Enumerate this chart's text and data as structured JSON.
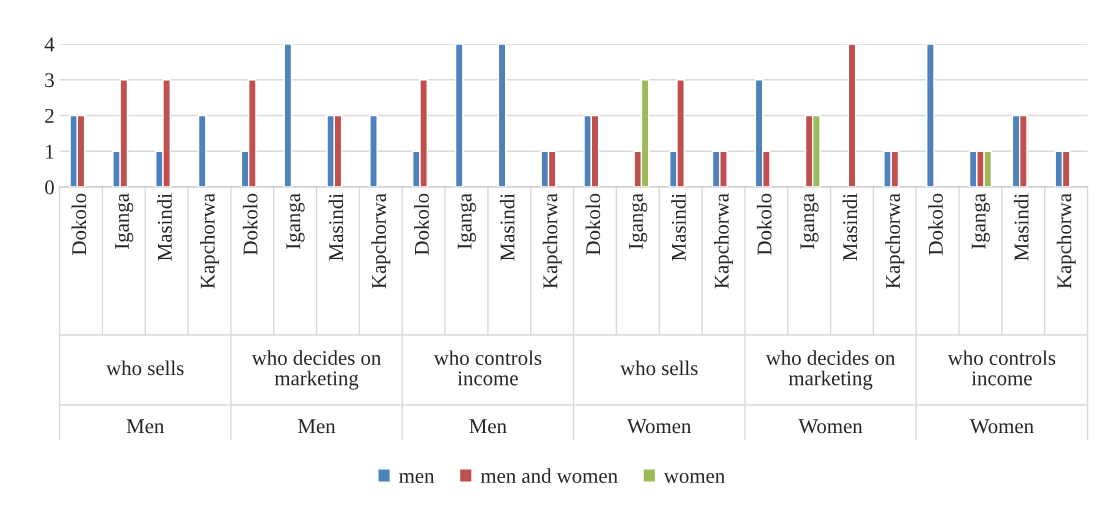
{
  "chart_data": {
    "type": "bar",
    "categories": [
      "Dokolo",
      "Iganga",
      "Masindi",
      "Kapchorwa",
      "Dokolo",
      "Iganga",
      "Masindi",
      "Kapchorwa",
      "Dokolo",
      "Iganga",
      "Masindi",
      "Kapchorwa",
      "Dokolo",
      "Iganga",
      "Masindi",
      "Kapchorwa",
      "Dokolo",
      "Iganga",
      "Masindi",
      "Kapchorwa",
      "Dokolo",
      "Iganga",
      "Masindi",
      "Kapchorwa"
    ],
    "series": [
      {
        "name": "men",
        "color": "#4f81bd",
        "values": [
          2,
          1,
          1,
          2,
          1,
          4,
          2,
          2,
          1,
          4,
          4,
          1,
          2,
          null,
          1,
          1,
          3,
          null,
          null,
          1,
          4,
          1,
          2,
          1
        ]
      },
      {
        "name": "men and women",
        "color": "#c0504d",
        "values": [
          2,
          3,
          3,
          null,
          3,
          null,
          2,
          null,
          3,
          null,
          null,
          1,
          2,
          1,
          3,
          1,
          1,
          2,
          4,
          1,
          null,
          1,
          2,
          1
        ]
      },
      {
        "name": "women",
        "color": "#9bbb59",
        "values": [
          null,
          null,
          null,
          null,
          null,
          null,
          null,
          null,
          null,
          null,
          null,
          null,
          null,
          3,
          null,
          null,
          null,
          2,
          null,
          null,
          null,
          1,
          null,
          null
        ]
      }
    ],
    "annotations": [
      "who sells",
      "who decides on\nmarketing",
      "who controls\nincome",
      "who sells",
      "who decides on\nmarketing",
      "who controls\nincome",
      "Men",
      "Men",
      "Men",
      "Women",
      "Women",
      "Women"
    ],
    "ylim": [
      0,
      4
    ],
    "yticks": [
      0,
      1,
      2,
      3,
      4
    ],
    "grid": "y",
    "legend": "bottom"
  }
}
